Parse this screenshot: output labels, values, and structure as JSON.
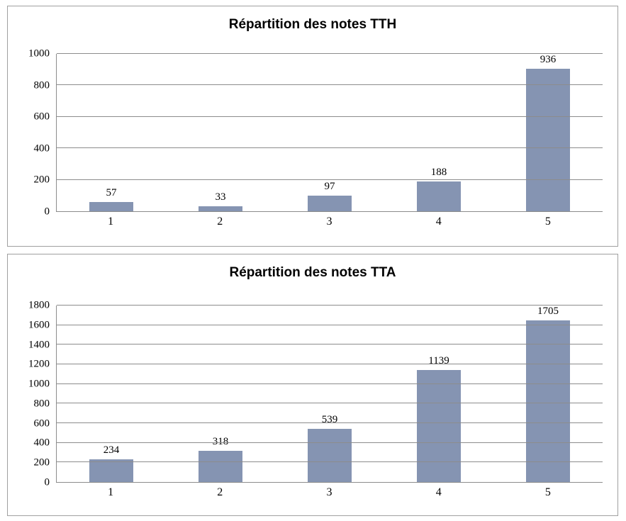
{
  "page": {
    "background_color": "#ffffff"
  },
  "colors": {
    "bar_fill": "#8594b2",
    "gridline": "#8c8c8c",
    "axis_line": "#8c8c8c",
    "panel_border": "#a0a0a0",
    "text": "#000000"
  },
  "chart_data": [
    {
      "type": "bar",
      "title": "Répartition des notes TTH",
      "categories": [
        "1",
        "2",
        "3",
        "4",
        "5"
      ],
      "values": [
        57,
        33,
        97,
        188,
        936
      ],
      "data_labels": [
        "57",
        "33",
        "97",
        "188",
        "936"
      ],
      "xlabel": "",
      "ylabel": "",
      "ylim": [
        0,
        1000
      ],
      "ytick_step": 200,
      "yticks": [
        0,
        200,
        400,
        600,
        800,
        1000
      ],
      "grid": "horizontal",
      "legend": "none",
      "bar_color": "#8594b2"
    },
    {
      "type": "bar",
      "title": "Répartition des notes TTA",
      "categories": [
        "1",
        "2",
        "3",
        "4",
        "5"
      ],
      "values": [
        234,
        318,
        539,
        1139,
        1705
      ],
      "data_labels": [
        "234",
        "318",
        "539",
        "1139",
        "1705"
      ],
      "xlabel": "",
      "ylabel": "",
      "ylim": [
        0,
        1800
      ],
      "ytick_step": 200,
      "yticks": [
        0,
        200,
        400,
        600,
        800,
        1000,
        1200,
        1400,
        1600,
        1800
      ],
      "grid": "horizontal",
      "legend": "none",
      "bar_color": "#8594b2"
    }
  ]
}
